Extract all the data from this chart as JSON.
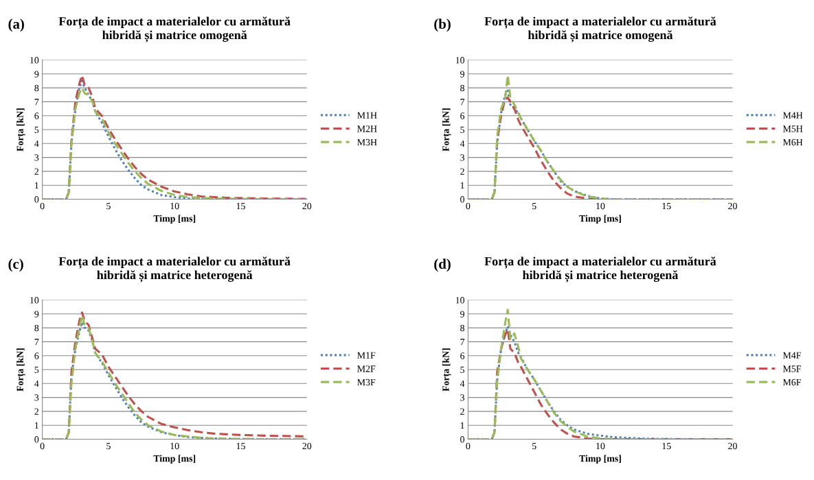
{
  "chart_data": [
    {
      "type": "line",
      "title": "Forța de impact a materialelor cu armătură\nhibridă și matrice omogenă",
      "annotations": [
        "(a)"
      ],
      "xlabel": "Timp [ms]",
      "ylabel": "Forța [kN]",
      "xlim": [
        0,
        20
      ],
      "xticks": [
        0,
        5,
        10,
        15,
        20
      ],
      "ylim": [
        0,
        10
      ],
      "yticks": [
        0,
        1,
        2,
        3,
        4,
        5,
        6,
        7,
        8,
        9,
        10
      ],
      "grid": "y",
      "legend": "right",
      "marker": "none",
      "x": [
        0,
        1.8,
        2,
        2.2,
        2.5,
        2.8,
        3,
        3.2,
        3.5,
        3.8,
        4,
        4.5,
        5,
        5.5,
        6,
        6.5,
        7,
        7.5,
        8,
        9,
        10,
        11,
        12,
        13,
        14,
        15,
        17,
        20
      ],
      "series": [
        {
          "name": "M1H",
          "color": "#4f81bd",
          "line_style": "dotted",
          "values": [
            0,
            0,
            0.5,
            4,
            6.5,
            8,
            8.5,
            8,
            7.5,
            7,
            6.3,
            5.5,
            4.5,
            3.6,
            2.8,
            2.1,
            1.5,
            1.0,
            0.7,
            0.3,
            0.15,
            0.05,
            0.02,
            0,
            0,
            null,
            null,
            null
          ]
        },
        {
          "name": "M2H",
          "color": "#c0504d",
          "line_style": "dashed",
          "values": [
            0,
            0,
            0.5,
            4.2,
            7,
            8.3,
            8.9,
            8.2,
            8.0,
            7.3,
            6.5,
            6.0,
            5.1,
            4.3,
            3.6,
            2.9,
            2.3,
            1.8,
            1.4,
            0.9,
            0.55,
            0.35,
            0.2,
            0.15,
            0.1,
            0.08,
            0.05,
            0.02
          ]
        },
        {
          "name": "M3H",
          "color": "#9bbb59",
          "line_style": "dashed",
          "values": [
            0,
            0,
            0.5,
            4,
            6.5,
            7.6,
            8.0,
            7.6,
            7.5,
            7.0,
            6.3,
            5.8,
            4.8,
            4.0,
            3.3,
            2.6,
            2.0,
            1.5,
            1.1,
            0.6,
            0.3,
            0.15,
            0.1,
            0.05,
            0.03,
            0.02,
            0.01,
            0
          ]
        }
      ]
    },
    {
      "type": "line",
      "title": "Forța de impact a materialelor cu armătură\nhibridă și matrice omogenă",
      "annotations": [
        "(b)"
      ],
      "xlabel": "Timp [ms]",
      "ylabel": "Forța [kN]",
      "xlim": [
        0,
        20
      ],
      "xticks": [
        0,
        5,
        10,
        15,
        20
      ],
      "ylim": [
        0,
        10
      ],
      "yticks": [
        0,
        1,
        2,
        3,
        4,
        5,
        6,
        7,
        8,
        9,
        10
      ],
      "grid": "y",
      "legend": "right",
      "marker": "none",
      "x": [
        0,
        1.8,
        2,
        2.2,
        2.5,
        2.8,
        3,
        3.2,
        3.5,
        3.8,
        4,
        4.5,
        5,
        5.5,
        6,
        6.5,
        7,
        7.5,
        8,
        9,
        10,
        11,
        12,
        13,
        14,
        15,
        17,
        20
      ],
      "series": [
        {
          "name": "M4H",
          "color": "#4f81bd",
          "line_style": "dotted",
          "values": [
            0,
            0,
            0.5,
            4,
            6.2,
            7.5,
            7.8,
            6.8,
            6.5,
            6.2,
            5.8,
            5.0,
            4.2,
            3.5,
            2.7,
            2.0,
            1.3,
            0.9,
            0.6,
            0.25,
            0.05,
            0,
            0,
            0,
            0,
            0,
            0,
            0
          ]
        },
        {
          "name": "M5H",
          "color": "#c0504d",
          "line_style": "dashed",
          "values": [
            0,
            0,
            0.5,
            4.2,
            6.0,
            7.2,
            7.3,
            7.0,
            6.5,
            5.7,
            5.3,
            4.5,
            3.7,
            2.8,
            2.0,
            1.3,
            0.8,
            0.4,
            0.2,
            0.05,
            0,
            0,
            0,
            0,
            0,
            0,
            0,
            0
          ]
        },
        {
          "name": "M6H",
          "color": "#9bbb59",
          "line_style": "dashed",
          "values": [
            0,
            0,
            0.5,
            4.5,
            6.5,
            7.2,
            8.9,
            7.3,
            6.8,
            6.2,
            5.8,
            5.0,
            4.2,
            3.5,
            2.7,
            2.0,
            1.4,
            0.9,
            0.6,
            0.2,
            0.05,
            0,
            0,
            0,
            0,
            0,
            0,
            0
          ]
        }
      ]
    },
    {
      "type": "line",
      "title": "Forța de impact a materialelor cu armătură\nhibridă și matrice heterogenă",
      "annotations": [
        "(c)"
      ],
      "xlabel": "Timp [ms]",
      "ylabel": "Forța [kN]",
      "xlim": [
        0,
        20
      ],
      "xticks": [
        0,
        5,
        10,
        15,
        20
      ],
      "ylim": [
        0,
        10
      ],
      "yticks": [
        0,
        1,
        2,
        3,
        4,
        5,
        6,
        7,
        8,
        9,
        10
      ],
      "grid": "y",
      "legend": "right",
      "marker": "none",
      "x": [
        0,
        1.8,
        2,
        2.2,
        2.5,
        2.8,
        3,
        3.2,
        3.5,
        3.8,
        4,
        4.5,
        5,
        5.5,
        6,
        6.5,
        7,
        7.5,
        8,
        9,
        10,
        11,
        12,
        13,
        14,
        15,
        17,
        20
      ],
      "series": [
        {
          "name": "M1F",
          "color": "#4f81bd",
          "line_style": "dotted",
          "values": [
            0,
            0,
            0.5,
            4.5,
            6.5,
            7.7,
            8.4,
            8.0,
            7.8,
            7.0,
            6.2,
            5.5,
            4.6,
            3.8,
            3.0,
            2.3,
            1.7,
            1.2,
            0.9,
            0.5,
            0.3,
            0.15,
            0.1,
            0.05,
            0.02,
            0.01,
            0,
            0
          ]
        },
        {
          "name": "M2F",
          "color": "#c0504d",
          "line_style": "dashed",
          "values": [
            0,
            0,
            0.5,
            4.8,
            7.0,
            8.5,
            9.1,
            8.5,
            8.2,
            7.2,
            6.5,
            6.1,
            5.2,
            4.5,
            3.8,
            3.1,
            2.5,
            2.0,
            1.6,
            1.1,
            0.85,
            0.65,
            0.5,
            0.4,
            0.35,
            0.3,
            0.25,
            0.2
          ]
        },
        {
          "name": "M3F",
          "color": "#9bbb59",
          "line_style": "dashed",
          "values": [
            0,
            0,
            0.5,
            4.0,
            6.5,
            8.0,
            8.9,
            8.2,
            8.0,
            7.0,
            6.2,
            5.6,
            4.8,
            4.0,
            3.3,
            2.6,
            1.9,
            1.4,
            1.0,
            0.55,
            0.3,
            0.2,
            0.1,
            0.05,
            0.03,
            0.02,
            0,
            0
          ]
        }
      ]
    },
    {
      "type": "line",
      "title": "Forța de impact a materialelor cu armătură\nhibridă și matrice heterogenă",
      "annotations": [
        "(d)"
      ],
      "xlabel": "Timp [ms]",
      "ylabel": "Forța [kN]",
      "xlim": [
        0,
        20
      ],
      "xticks": [
        0,
        5,
        10,
        15,
        20
      ],
      "ylim": [
        0,
        10
      ],
      "yticks": [
        0,
        1,
        2,
        3,
        4,
        5,
        6,
        7,
        8,
        9,
        10
      ],
      "grid": "y",
      "legend": "right",
      "marker": "none",
      "x": [
        0,
        1.8,
        2,
        2.2,
        2.5,
        2.8,
        3,
        3.2,
        3.5,
        3.8,
        4,
        4.5,
        5,
        5.5,
        6,
        6.5,
        7,
        7.5,
        8,
        9,
        10,
        11,
        12,
        13,
        14,
        15,
        17,
        20
      ],
      "series": [
        {
          "name": "M4F",
          "color": "#4f81bd",
          "line_style": "dotted",
          "values": [
            0,
            0,
            0.5,
            4.2,
            6.5,
            7.5,
            8.1,
            7.5,
            7.0,
            6.2,
            5.9,
            5.0,
            4.3,
            3.5,
            2.7,
            2.0,
            1.4,
            1.0,
            0.7,
            0.4,
            0.25,
            0.15,
            0.1,
            0.05,
            0.03,
            0.02,
            0,
            0
          ]
        },
        {
          "name": "M5F",
          "color": "#c0504d",
          "line_style": "dashed",
          "values": [
            0,
            0,
            0.5,
            4.8,
            6.5,
            7.5,
            7.9,
            6.5,
            6.2,
            5.5,
            5.2,
            4.3,
            3.4,
            2.5,
            1.8,
            1.2,
            0.7,
            0.4,
            0.2,
            0.05,
            0,
            0,
            0,
            0,
            0,
            0,
            0,
            0
          ]
        },
        {
          "name": "M6F",
          "color": "#9bbb59",
          "line_style": "dashed",
          "values": [
            0,
            0,
            0.5,
            4.2,
            6.5,
            8.3,
            9.3,
            7.2,
            7.6,
            6.6,
            5.8,
            5.0,
            4.3,
            3.5,
            2.7,
            1.9,
            1.3,
            0.9,
            0.55,
            0.2,
            0.05,
            0.02,
            0,
            0,
            0,
            0,
            0,
            0
          ]
        }
      ]
    }
  ]
}
